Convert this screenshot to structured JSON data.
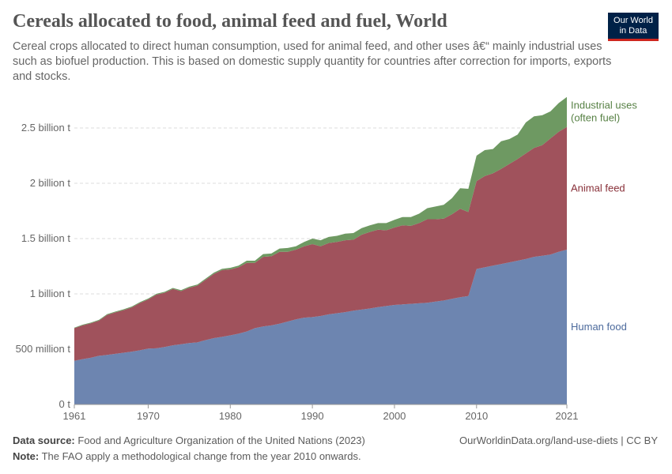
{
  "header": {
    "title": "Cereals allocated to food, animal feed and fuel, World",
    "subtitle": "Cereal crops allocated to direct human consumption, used for animal feed, and other uses â€“ mainly industrial uses such as biofuel production. This is based on domestic supply quantity for countries after correction for imports, exports and stocks."
  },
  "logo": {
    "line1": "Our World",
    "line2": "in Data"
  },
  "footer": {
    "source_label": "Data source:",
    "source_text": "Food and Agriculture Organization of the United Nations (2023)",
    "note_label": "Note:",
    "note_text": "The FAO apply a methodological change from the year 2010 onwards.",
    "attribution": "OurWorldinData.org/land-use-diets | CC BY"
  },
  "chart_data": {
    "type": "area",
    "stacked": true,
    "x_ticks": [
      1961,
      1970,
      1980,
      1990,
      2000,
      2010,
      2021
    ],
    "y_ticks": [
      {
        "value": 0,
        "label": "0 t"
      },
      {
        "value": 500,
        "label": "500 million t"
      },
      {
        "value": 1000,
        "label": "1 billion t"
      },
      {
        "value": 1500,
        "label": "1.5 billion t"
      },
      {
        "value": 2000,
        "label": "2 billion t"
      },
      {
        "value": 2500,
        "label": "2.5 billion t"
      }
    ],
    "y_unit": "million t",
    "ylim": [
      0,
      2800
    ],
    "xlim": [
      1961,
      2021
    ],
    "grid": "horizontal-dashed",
    "x": [
      1961,
      1962,
      1963,
      1964,
      1965,
      1966,
      1967,
      1968,
      1969,
      1970,
      1971,
      1972,
      1973,
      1974,
      1975,
      1976,
      1977,
      1978,
      1979,
      1980,
      1981,
      1982,
      1983,
      1984,
      1985,
      1986,
      1987,
      1988,
      1989,
      1990,
      1991,
      1992,
      1993,
      1994,
      1995,
      1996,
      1997,
      1998,
      1999,
      2000,
      2001,
      2002,
      2003,
      2004,
      2005,
      2006,
      2007,
      2008,
      2009,
      2010,
      2011,
      2012,
      2013,
      2014,
      2015,
      2016,
      2017,
      2018,
      2019,
      2020,
      2021
    ],
    "series": [
      {
        "name": "Human food",
        "label": "Human food",
        "color": "#6d85b0",
        "label_color": "#4c6a9c",
        "values": [
          395,
          410,
          422,
          440,
          448,
          458,
          468,
          478,
          490,
          505,
          508,
          520,
          535,
          545,
          555,
          562,
          582,
          600,
          612,
          625,
          640,
          660,
          690,
          705,
          715,
          730,
          750,
          770,
          785,
          790,
          800,
          815,
          825,
          835,
          848,
          858,
          868,
          880,
          890,
          900,
          905,
          910,
          915,
          920,
          930,
          940,
          955,
          970,
          980,
          1225,
          1240,
          1255,
          1270,
          1285,
          1300,
          1315,
          1335,
          1345,
          1355,
          1380,
          1400
        ]
      },
      {
        "name": "Animal feed",
        "label": "Animal feed",
        "color": "#a0525c",
        "label_color": "#883039",
        "values": [
          295,
          305,
          312,
          318,
          362,
          375,
          385,
          400,
          428,
          445,
          485,
          490,
          510,
          480,
          500,
          513,
          546,
          580,
          603,
          596,
          600,
          620,
          590,
          630,
          625,
          650,
          630,
          630,
          645,
          660,
          630,
          645,
          645,
          650,
          642,
          677,
          692,
          700,
          685,
          700,
          715,
          705,
          725,
          755,
          745,
          740,
          765,
          800,
          760,
          795,
          825,
          835,
          860,
          890,
          920,
          955,
          985,
          1000,
          1050,
          1085,
          1110
        ]
      },
      {
        "name": "Industrial uses (often fuel)",
        "label": "Industrial uses\n(often fuel)",
        "color": "#6e9962",
        "label_color": "#578145",
        "values": [
          5,
          6,
          6,
          7,
          7,
          7,
          8,
          8,
          8,
          8,
          8,
          9,
          9,
          9,
          10,
          10,
          10,
          12,
          12,
          15,
          15,
          20,
          20,
          25,
          25,
          30,
          35,
          30,
          40,
          50,
          55,
          55,
          55,
          60,
          60,
          60,
          60,
          60,
          65,
          70,
          75,
          80,
          85,
          100,
          115,
          125,
          145,
          185,
          210,
          230,
          235,
          220,
          250,
          225,
          220,
          280,
          285,
          270,
          245,
          260,
          270
        ]
      }
    ]
  }
}
